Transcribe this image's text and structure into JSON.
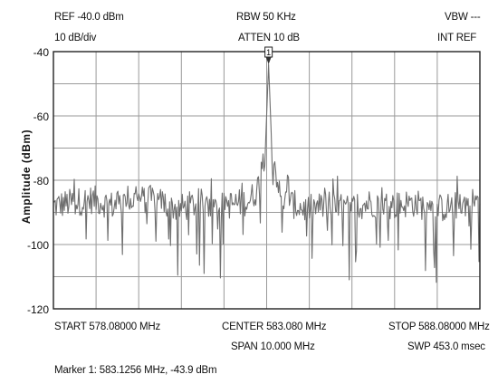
{
  "header": {
    "ref": "REF -40.0 dBm",
    "scale": "10 dB/div",
    "rbw": "RBW 50 KHz",
    "atten": "ATTEN 10 dB",
    "vbw": "VBW ---",
    "ref_mode": "INT REF"
  },
  "footer": {
    "start": "START 578.08000 MHz",
    "center": "CENTER 583.080 MHz",
    "stop": "STOP 588.08000 MHz",
    "span": "SPAN 10.000 MHz",
    "sweep": "SWP 453.0 msec",
    "marker_readout": "Marker 1: 583.1256 MHz, -43.9 dBm"
  },
  "marker": {
    "label": "1"
  },
  "colors": {
    "trace": "#6e6e6e",
    "grid": "#9a9a9a",
    "frame": "#222222"
  },
  "chart_data": {
    "type": "line",
    "title": "",
    "xlabel": "",
    "ylabel": "Amplitude (dBm)",
    "xlim": [
      578.08,
      588.08
    ],
    "ylim": [
      -120,
      -40
    ],
    "y_ticks": [
      "-40",
      "-60",
      "-80",
      "-100",
      "-120"
    ],
    "grid": true,
    "x_divisions": 10,
    "y_divisions": 8,
    "noise_floor_dbm": -89,
    "series": [
      {
        "values_note": "",
        "x": [
          578.08,
          578.5,
          579.0,
          579.5,
          580.0,
          580.5,
          581.0,
          581.5,
          582.0,
          582.5,
          582.7,
          582.85,
          582.95,
          583.0,
          583.05,
          583.1256,
          583.2,
          583.3,
          583.4,
          583.6,
          584.0,
          584.5,
          585.0,
          585.5,
          586.0,
          586.5,
          587.0,
          587.5,
          588.08
        ],
        "values": [
          -88,
          -87,
          -86,
          -88,
          -86,
          -86,
          -89,
          -87,
          -88,
          -87,
          -86,
          -83,
          -78,
          -74,
          -70,
          -43.9,
          -70,
          -77,
          -86,
          -87,
          -89,
          -88,
          -89,
          -87,
          -88,
          -87,
          -89,
          -88,
          -86
        ]
      }
    ],
    "marker": {
      "x": 583.1256,
      "y": -43.9
    }
  }
}
